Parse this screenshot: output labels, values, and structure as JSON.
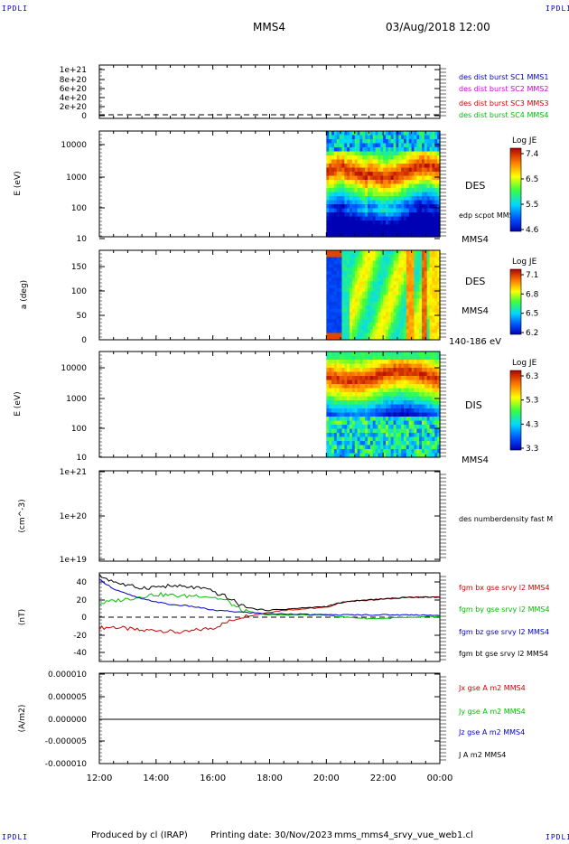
{
  "corners": {
    "tl": "IPDLI",
    "tr": "IPDLI",
    "bl": "IPDLI",
    "br": "IPDLI"
  },
  "header": {
    "spacecraft": "MMS4",
    "datetime": "03/Aug/2018 12:00"
  },
  "footer": {
    "produced": "Produced by cl (IRAP)",
    "printing": "Printing date: 30/Nov/2023",
    "file": "mms_mms4_srvy_vue_web1.cl"
  },
  "colors": {
    "black": "#000000",
    "red": "#d00000",
    "green": "#00c000",
    "blue": "#0000c8",
    "magenta": "#d000d0"
  },
  "chart_data": [
    {
      "type": "line",
      "id": "des-dist-burst",
      "ylabel": "",
      "ylim": [
        0,
        1.15e+21
      ],
      "yticks": [
        "1e+21",
        "8e+20",
        "6e+20",
        "4e+20",
        "2e+20",
        "0"
      ],
      "reference_line": 0,
      "legend": [
        {
          "name": "des dist burst SC1 MMS1",
          "color": "#0000c8"
        },
        {
          "name": "des dist burst SC2 MMS2",
          "color": "#d000d0"
        },
        {
          "name": "des dist burst SC3 MMS3",
          "color": "#d00000"
        },
        {
          "name": "des dist burst SC4 MMS4",
          "color": "#00c000"
        }
      ]
    },
    {
      "type": "heatmap",
      "id": "des-energy",
      "ylabel": "E (eV)",
      "yscale": "log",
      "ylim": [
        10,
        25000
      ],
      "yticks": [
        "10000",
        "1000",
        "100",
        "10"
      ],
      "data_start_hour": 20,
      "right_labels": [
        "DES",
        "edp scpot MMS4",
        "MMS4"
      ],
      "colorbar": {
        "title": "Log JE",
        "ticks": [
          "7.4",
          "6.5",
          "5.5",
          "4.6"
        ],
        "range": [
          4.6,
          7.4
        ]
      }
    },
    {
      "type": "heatmap",
      "id": "des-pitch",
      "ylabel": "a (deg)",
      "ylim": [
        0,
        180
      ],
      "yticks": [
        "150",
        "100",
        "50",
        "0"
      ],
      "data_start_hour": 20,
      "right_labels": [
        "DES",
        "MMS4",
        "140-186 eV"
      ],
      "colorbar": {
        "title": "Log JE",
        "ticks": [
          "7.1",
          "6.8",
          "6.5",
          "6.2"
        ],
        "range": [
          6.2,
          7.1
        ]
      }
    },
    {
      "type": "heatmap",
      "id": "dis-energy",
      "ylabel": "E (eV)",
      "yscale": "log",
      "ylim": [
        10,
        20000
      ],
      "yticks": [
        "10000",
        "1000",
        "100",
        "10"
      ],
      "data_start_hour": 20,
      "right_labels": [
        "DIS",
        "MMS4"
      ],
      "colorbar": {
        "title": "Log JE",
        "ticks": [
          "6.3",
          "5.3",
          "4.3",
          "3.3"
        ],
        "range": [
          3.3,
          6.3
        ]
      }
    },
    {
      "type": "line",
      "id": "density",
      "ylabel": "(cm^-3)",
      "yscale": "log",
      "ylim": [
        1e+19,
        1e+21
      ],
      "yticks": [
        "1e+21",
        "1e+20",
        "1e+19"
      ],
      "legend": [
        {
          "name": "des numberdensity fast M",
          "color": "#000000"
        }
      ]
    },
    {
      "type": "line",
      "id": "fgm",
      "ylabel": "(nT)",
      "ylim": [
        -50,
        45
      ],
      "yticks": [
        "40",
        "20",
        "0",
        "-20",
        "-40"
      ],
      "reference_line": 0,
      "x": [
        12,
        12.5,
        13,
        13.5,
        14,
        14.5,
        15,
        15.5,
        16,
        16.5,
        17,
        17.5,
        18,
        18.5,
        19,
        19.5,
        20,
        20.5,
        21,
        21.5,
        22,
        22.5,
        23,
        23.5,
        24
      ],
      "series": [
        {
          "name": "fgm bx gse srvy l2 MMS4",
          "color": "#d00000",
          "values": [
            -14,
            -13,
            -15,
            -17,
            -16,
            -18,
            -19,
            -16,
            -14,
            -8,
            -2,
            0,
            3,
            5,
            6,
            7,
            8,
            13,
            15,
            16,
            17,
            18,
            19,
            19,
            19
          ]
        },
        {
          "name": "fgm by gse srvy l2 MMS4",
          "color": "#00c000",
          "values": [
            12,
            15,
            17,
            20,
            22,
            21,
            20,
            21,
            19,
            15,
            5,
            2,
            0,
            0,
            0,
            0,
            0,
            -2,
            -3,
            -4,
            -4,
            -3,
            -3,
            -2,
            -2
          ]
        },
        {
          "name": "fgm bz gse srvy l2 MMS4",
          "color": "#0000c8",
          "values": [
            38,
            28,
            22,
            17,
            14,
            11,
            10,
            8,
            5,
            4,
            3,
            2,
            1,
            1,
            1,
            0,
            0,
            0,
            0,
            0,
            0,
            0,
            0,
            0,
            -1
          ]
        },
        {
          "name": "fgm bt gse srvy l2 MMS4",
          "color": "#000000",
          "values": [
            42,
            36,
            31,
            29,
            30,
            31,
            30,
            29,
            25,
            19,
            10,
            6,
            5,
            6,
            7,
            8,
            9,
            13,
            15,
            16,
            17,
            18,
            19,
            19,
            19
          ]
        }
      ]
    },
    {
      "type": "line",
      "id": "current-density",
      "ylabel": "(A/m2)",
      "ylim": [
        -1e-05,
        1e-05
      ],
      "yticks": [
        "0.000010",
        "0.000005",
        "0.000000",
        "-0.000005",
        "-0.000010"
      ],
      "legend": [
        {
          "name": "Jx gse A m2 MMS4",
          "color": "#d00000"
        },
        {
          "name": "Jy gse A m2 MMS4",
          "color": "#00c000"
        },
        {
          "name": "Jz gse A m2 MMS4",
          "color": "#0000c8"
        },
        {
          "name": "J A m2 MMS4",
          "color": "#000000"
        }
      ]
    }
  ],
  "xaxis": {
    "ticks": [
      "12:00",
      "14:00",
      "16:00",
      "18:00",
      "20:00",
      "22:00",
      "00:00"
    ],
    "range_hours": [
      12,
      24
    ]
  }
}
